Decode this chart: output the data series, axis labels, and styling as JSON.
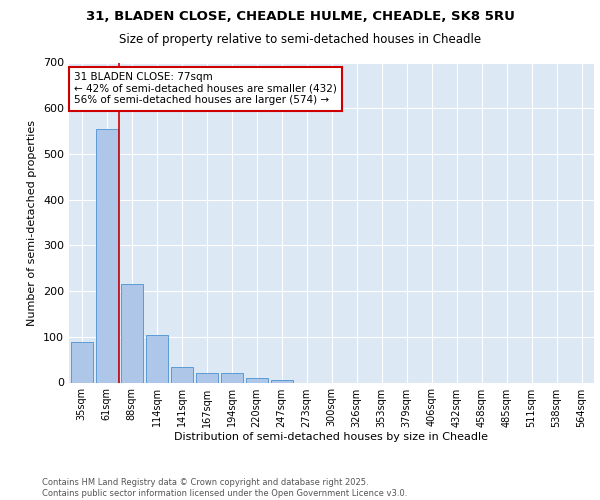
{
  "title1": "31, BLADEN CLOSE, CHEADLE HULME, CHEADLE, SK8 5RU",
  "title2": "Size of property relative to semi-detached houses in Cheadle",
  "xlabel": "Distribution of semi-detached houses by size in Cheadle",
  "ylabel": "Number of semi-detached properties",
  "footnote1": "Contains HM Land Registry data © Crown copyright and database right 2025.",
  "footnote2": "Contains public sector information licensed under the Open Government Licence v3.0.",
  "bin_labels": [
    "35sqm",
    "61sqm",
    "88sqm",
    "114sqm",
    "141sqm",
    "167sqm",
    "194sqm",
    "220sqm",
    "247sqm",
    "273sqm",
    "300sqm",
    "326sqm",
    "353sqm",
    "379sqm",
    "406sqm",
    "432sqm",
    "458sqm",
    "485sqm",
    "511sqm",
    "538sqm",
    "564sqm"
  ],
  "bar_values": [
    88,
    555,
    215,
    105,
    35,
    20,
    20,
    10,
    5,
    0,
    0,
    0,
    0,
    0,
    0,
    0,
    0,
    0,
    0,
    0,
    0
  ],
  "bar_color": "#aec6e8",
  "bar_edgecolor": "#5b9bd5",
  "redline_x": 1.5,
  "annotation_title": "31 BLADEN CLOSE: 77sqm",
  "annotation_line1": "← 42% of semi-detached houses are smaller (432)",
  "annotation_line2": "56% of semi-detached houses are larger (574) →",
  "annotation_color": "#cc0000",
  "ylim": [
    0,
    700
  ],
  "yticks": [
    0,
    100,
    200,
    300,
    400,
    500,
    600,
    700
  ],
  "background_color": "#dde8f5",
  "grid_color": "#ffffff",
  "fig_background": "#ffffff",
  "title1_fontsize": 9.5,
  "title2_fontsize": 8.5,
  "xlabel_fontsize": 8,
  "ylabel_fontsize": 8,
  "tick_fontsize": 7,
  "footnote_fontsize": 6,
  "ann_fontsize": 7.5
}
